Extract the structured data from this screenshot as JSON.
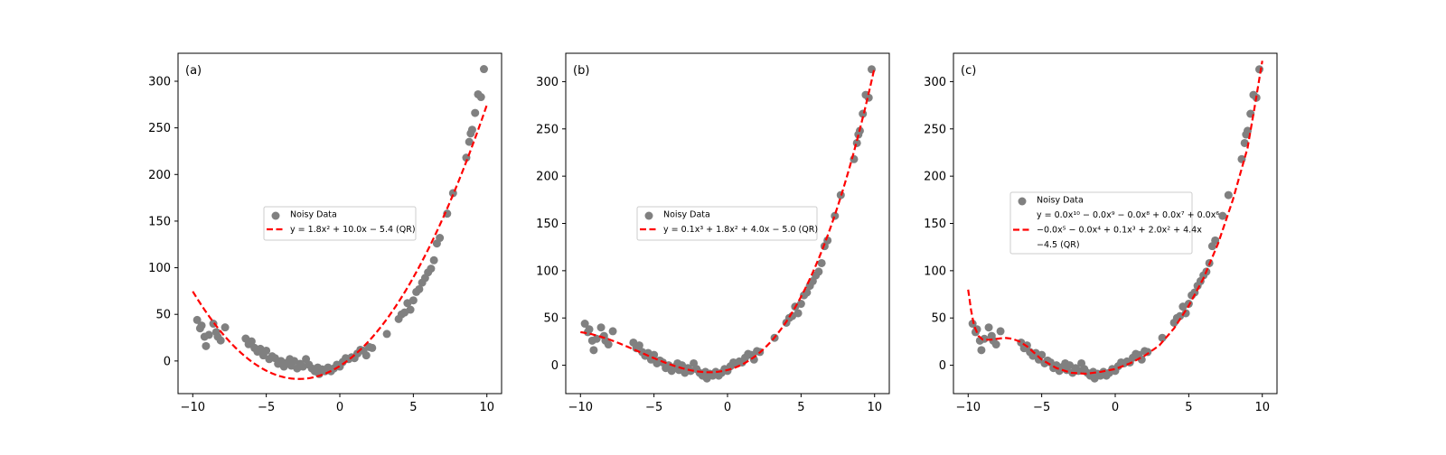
{
  "chart_data": [
    {
      "type": "scatter",
      "panel_label": "(a)",
      "xlim": [
        -11,
        11
      ],
      "ylim": [
        -35,
        330
      ],
      "xticks": [
        -10,
        -5,
        0,
        5,
        10
      ],
      "yticks": [
        0,
        50,
        100,
        150,
        200,
        250,
        300
      ],
      "grid": false,
      "legend_placement": "center",
      "series": [
        {
          "name": "Noisy Data",
          "kind": "scatter",
          "color": "#808080"
        },
        {
          "name": "y = 1.8x² + 10.0x − 5.4 (QR)",
          "kind": "fit-line",
          "color": "#ff0000",
          "coefficients_high_to_low": [
            1.8,
            10.0,
            -5.4
          ]
        }
      ],
      "legend": [
        "Noisy Data",
        "y = 1.8x² + 10.0x − 5.4 (QR)"
      ]
    },
    {
      "type": "scatter",
      "panel_label": "(b)",
      "xlim": [
        -11,
        11
      ],
      "ylim": [
        -30,
        330
      ],
      "xticks": [
        -10,
        -5,
        0,
        5,
        10
      ],
      "yticks": [
        0,
        50,
        100,
        150,
        200,
        250,
        300
      ],
      "grid": false,
      "legend_placement": "center",
      "series": [
        {
          "name": "Noisy Data",
          "kind": "scatter",
          "color": "#808080"
        },
        {
          "name": "y = 0.1x³ + 1.8x² + 4.0x − 5.0 (QR)",
          "kind": "fit-line",
          "color": "#ff0000",
          "coefficients_high_to_low": [
            0.1,
            1.8,
            4.0,
            -5.0
          ]
        }
      ],
      "legend": [
        "Noisy Data",
        "y = 0.1x³ + 1.8x² + 4.0x − 5.0 (QR)"
      ]
    },
    {
      "type": "scatter",
      "panel_label": "(c)",
      "xlim": [
        -11,
        11
      ],
      "ylim": [
        -30,
        330
      ],
      "xticks": [
        -10,
        -5,
        0,
        5,
        10
      ],
      "yticks": [
        0,
        50,
        100,
        150,
        200,
        250,
        300
      ],
      "grid": false,
      "legend_placement": "center",
      "series": [
        {
          "name": "Noisy Data",
          "kind": "scatter",
          "color": "#808080"
        },
        {
          "name": "y = 0.0x¹⁰ − 0.0x⁹ − 0.0x⁸ + 0.0x⁷ + 0.0x⁶ − 0.0x⁵ − 0.0x⁴ + 0.1x³ + 2.0x² + 4.4x − 4.5 (QR)",
          "kind": "fit-line",
          "color": "#ff0000"
        }
      ],
      "legend": [
        "Noisy Data",
        "y = 0.0x¹⁰ − 0.0x⁹ − 0.0x⁸ + 0.0x⁷ + 0.0x⁶",
        "−0.0x⁵ − 0.0x⁴ + 0.1x³ + 2.0x² + 4.4x",
        "−4.5 (QR)"
      ],
      "fit_curve": {
        "x": [
          -10,
          -9.8,
          -9.6,
          -9.3,
          -9.0,
          -8.5,
          -8.0,
          -7.5,
          -7.0,
          -6.5,
          -6.0,
          -5.5,
          -5.0,
          -4.0,
          -3.0,
          -2.0,
          -1.0,
          0,
          1,
          2,
          3,
          4,
          5,
          6,
          7,
          8,
          9,
          9.5,
          10
        ],
        "y": [
          80,
          58,
          42,
          31,
          27,
          27,
          28,
          29,
          28,
          25,
          20,
          13,
          6,
          -3,
          -8,
          -9,
          -7,
          -4,
          2,
          10,
          21,
          39,
          63,
          92,
          129,
          175,
          230,
          275,
          322
        ]
      }
    }
  ],
  "scatter_points": {
    "x": [
      -9.7,
      -9.5,
      -9.4,
      -9.2,
      -9.1,
      -8.9,
      -8.6,
      -8.4,
      -8.3,
      -8.1,
      -7.8,
      -6.4,
      -6.2,
      -6.0,
      -5.8,
      -5.6,
      -5.4,
      -5.2,
      -5.0,
      -4.8,
      -4.6,
      -4.4,
      -4.2,
      -4.0,
      -3.8,
      -3.6,
      -3.4,
      -3.3,
      -3.1,
      -2.9,
      -2.7,
      -2.5,
      -2.3,
      -2.1,
      -1.9,
      -1.7,
      -1.5,
      -1.4,
      -1.2,
      -1.0,
      -0.8,
      -0.6,
      -0.4,
      -0.2,
      0.0,
      0.2,
      0.4,
      0.6,
      0.8,
      1.0,
      1.2,
      1.4,
      1.6,
      1.8,
      2.0,
      2.2,
      3.2,
      4.0,
      4.2,
      4.4,
      4.6,
      4.8,
      5.0,
      5.2,
      5.4,
      5.6,
      5.8,
      6.0,
      6.2,
      6.4,
      6.6,
      6.8,
      7.3,
      7.7,
      8.6,
      8.8,
      8.9,
      9.0,
      9.2,
      9.4,
      9.6,
      9.8
    ],
    "y": [
      44,
      35,
      38,
      26,
      16,
      28,
      40,
      31,
      26,
      22,
      36,
      24,
      18,
      21,
      14,
      10,
      13,
      6,
      11,
      2,
      5,
      3,
      -3,
      0,
      -6,
      -2,
      2,
      -5,
      0,
      -8,
      -3,
      -6,
      2,
      -4,
      -8,
      -11,
      -7,
      -14,
      -9,
      -11,
      -7,
      -11,
      -8,
      -4,
      -6,
      -1,
      3,
      2,
      4,
      3,
      8,
      12,
      11,
      6,
      15,
      14,
      29,
      45,
      50,
      52,
      62,
      55,
      65,
      74,
      77,
      84,
      89,
      95,
      99,
      108,
      126,
      132,
      158,
      180,
      218,
      235,
      244,
      248,
      266,
      286,
      283,
      313
    ]
  }
}
